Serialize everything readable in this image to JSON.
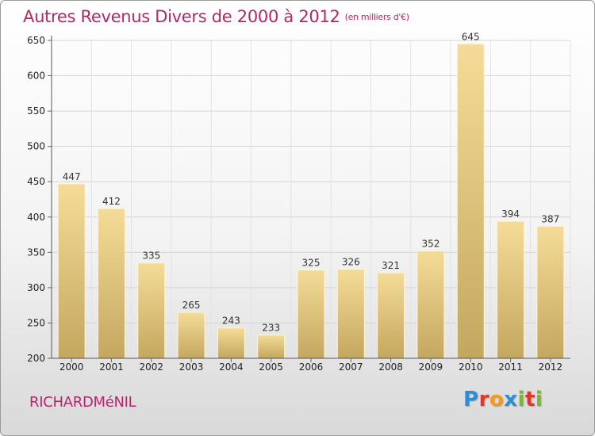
{
  "title": "Autres Revenus Divers de 2000 à 2012",
  "unit": "(en milliers d'€)",
  "location": "RICHARDMéNIL",
  "logo": {
    "letters": [
      "P",
      "r",
      "o",
      "x",
      "i",
      "t",
      "i"
    ],
    "colors": [
      "#2c8fd6",
      "#e5352a",
      "#f29a1d",
      "#2c8fd6",
      "#7cb82f",
      "#e5352a",
      "#7cb82f"
    ]
  },
  "chart_data": {
    "type": "bar",
    "title": "Autres Revenus Divers de 2000 à 2012",
    "xlabel": "",
    "ylabel": "",
    "categories": [
      "2000",
      "2001",
      "2002",
      "2003",
      "2004",
      "2005",
      "2006",
      "2007",
      "2008",
      "2009",
      "2010",
      "2011",
      "2012"
    ],
    "values": [
      447,
      412,
      335,
      265,
      243,
      233,
      325,
      326,
      321,
      352,
      645,
      394,
      387
    ],
    "ylim": [
      200,
      650
    ],
    "yticks": [
      200,
      250,
      300,
      350,
      400,
      450,
      500,
      550,
      600,
      650
    ],
    "grid": true,
    "bar_color": "#e6cc84",
    "bar_color_dark": "#c2a55e"
  }
}
